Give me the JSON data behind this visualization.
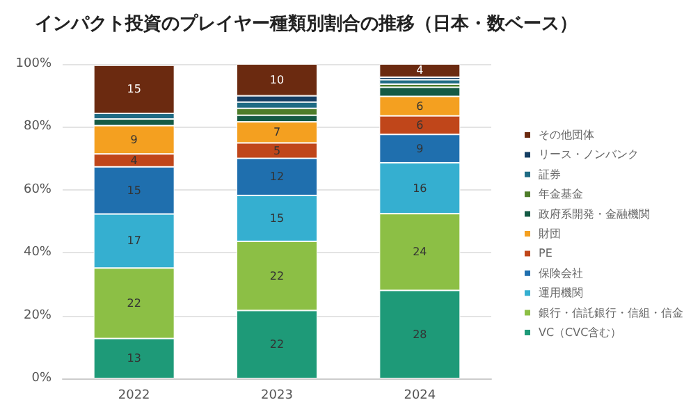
{
  "chart_data": {
    "type": "bar",
    "stacked": true,
    "title": "インパクト投資のプレイヤー種類別割合の推移（日本・数ベース）",
    "categories": [
      "2022",
      "2023",
      "2024"
    ],
    "ylim": [
      0,
      100
    ],
    "yticks": [
      {
        "value": 0,
        "label": "0%"
      },
      {
        "value": 20,
        "label": "20%"
      },
      {
        "value": 40,
        "label": "40%"
      },
      {
        "value": 60,
        "label": "60%"
      },
      {
        "value": 80,
        "label": "80%"
      },
      {
        "value": 100,
        "label": "100%"
      }
    ],
    "grid": "y",
    "legend": "right",
    "series": [
      {
        "name": "VC（CVC含む）",
        "color": "#1e9a78",
        "values": [
          12.7,
          21.6,
          28
        ],
        "value_labels": [
          "13",
          "22",
          "28"
        ]
      },
      {
        "name": "銀行・信託銀行・信組・信金",
        "color": "#8cbf45",
        "values": [
          22.4,
          22,
          24.4
        ],
        "value_labels": [
          "22",
          "22",
          "24"
        ]
      },
      {
        "name": "運用機関",
        "color": "#35afd0",
        "values": [
          17.2,
          14.6,
          16.2
        ],
        "value_labels": [
          "17",
          "15",
          "16"
        ]
      },
      {
        "name": "保険会社",
        "color": "#1f6fae",
        "values": [
          15,
          11.8,
          9
        ],
        "value_labels": [
          "15",
          "12",
          "9"
        ]
      },
      {
        "name": "PE",
        "color": "#c0461a",
        "values": [
          4.1,
          4.9,
          5.9
        ],
        "value_labels": [
          "4",
          "5",
          "6"
        ]
      },
      {
        "name": "財団",
        "color": "#f4a020",
        "values": [
          9,
          6.7,
          6.2
        ],
        "value_labels": [
          "9",
          "7",
          "6"
        ]
      },
      {
        "name": "政府系開発・金融機関",
        "color": "#145a44",
        "values": [
          2.1,
          2.1,
          2.9
        ]
      },
      {
        "name": "年金基金",
        "color": "#4e7d2a",
        "values": [
          0,
          2.2,
          1
        ]
      },
      {
        "name": "証券",
        "color": "#1f6b84",
        "values": [
          1.8,
          2,
          1.4
        ]
      },
      {
        "name": "リース・ノンバンク",
        "color": "#153e63",
        "values": [
          null,
          2,
          0.8
        ]
      },
      {
        "name": "その他団体",
        "color": "#6b2a10",
        "values": [
          15.3,
          10.1,
          4.2
        ],
        "value_labels": [
          "15",
          "10",
          "4"
        ]
      }
    ]
  }
}
